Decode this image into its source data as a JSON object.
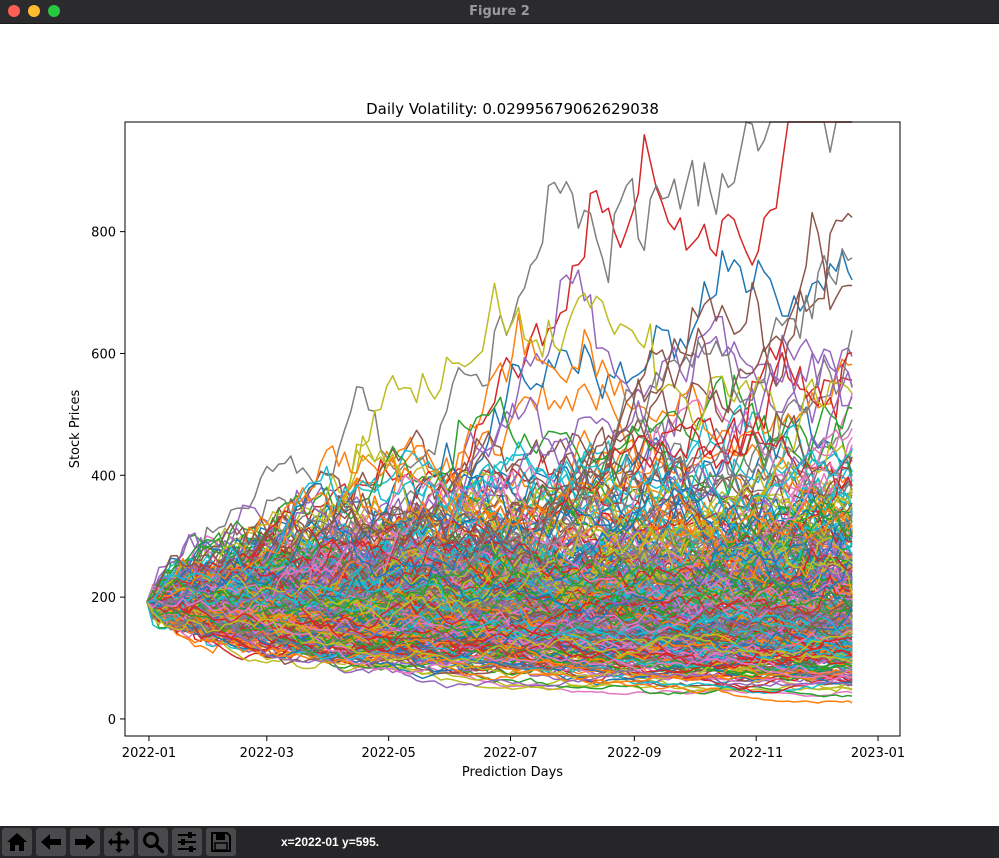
{
  "window": {
    "title": "Figure 2"
  },
  "toolbar": {
    "buttons": [
      {
        "name": "home-icon"
      },
      {
        "name": "back-arrow-icon"
      },
      {
        "name": "forward-arrow-icon"
      },
      {
        "name": "pan-icon"
      },
      {
        "name": "zoom-icon"
      },
      {
        "name": "configure-subplots-icon"
      },
      {
        "name": "save-icon"
      }
    ],
    "coordinates": "x=2022-01 y=595."
  },
  "chart_data": {
    "type": "line",
    "title": "Daily Volatility: 0.02995679062629038",
    "xlabel": "Prediction Days",
    "ylabel": "Stock Prices",
    "x_ticks": [
      "2022-01",
      "2022-03",
      "2022-05",
      "2022-07",
      "2022-09",
      "2022-11",
      "2023-01"
    ],
    "y_ticks": [
      "0",
      "200",
      "400",
      "600",
      "800"
    ],
    "x_range": [
      "2021-12-20",
      "2023-01-12"
    ],
    "ylim": [
      -28,
      980
    ],
    "series_start": {
      "date": "2021-12-31",
      "value": 192
    },
    "series_end_date": "2022-12-19",
    "daily_volatility": 0.02995679062629038,
    "series_count": 1000,
    "grid": false,
    "legend": "none",
    "colors": [
      "#1f77b4",
      "#ff7f0e",
      "#2ca02c",
      "#d62728",
      "#9467bd",
      "#8c564b",
      "#e377c2",
      "#7f7f7f",
      "#bcbd22",
      "#17becf"
    ]
  }
}
